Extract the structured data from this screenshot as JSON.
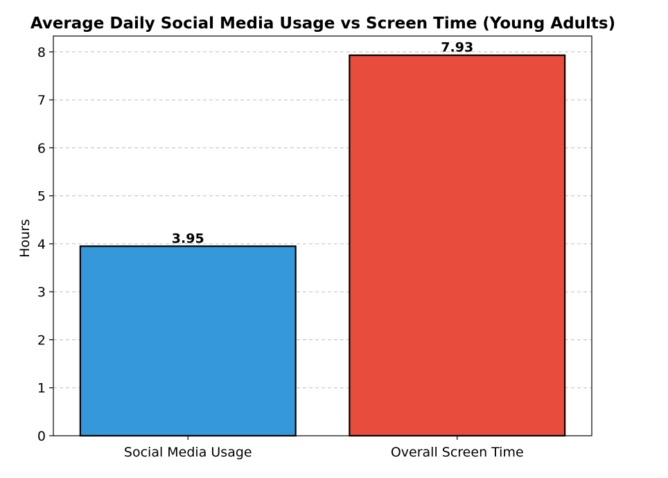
{
  "chart_data": {
    "type": "bar",
    "title": "Average Daily Social Media Usage vs Screen Time (Young Adults)",
    "xlabel": "",
    "ylabel": "Hours",
    "categories": [
      "Social Media Usage",
      "Overall Screen Time"
    ],
    "values": [
      3.95,
      7.93
    ],
    "value_labels": [
      "3.95",
      "7.93"
    ],
    "colors": [
      "#3498db",
      "#e74c3c"
    ],
    "ylim": [
      0,
      8.33
    ],
    "yticks": [
      0,
      1,
      2,
      3,
      4,
      5,
      6,
      7,
      8
    ],
    "grid": "y-dashed",
    "legend": "none"
  }
}
